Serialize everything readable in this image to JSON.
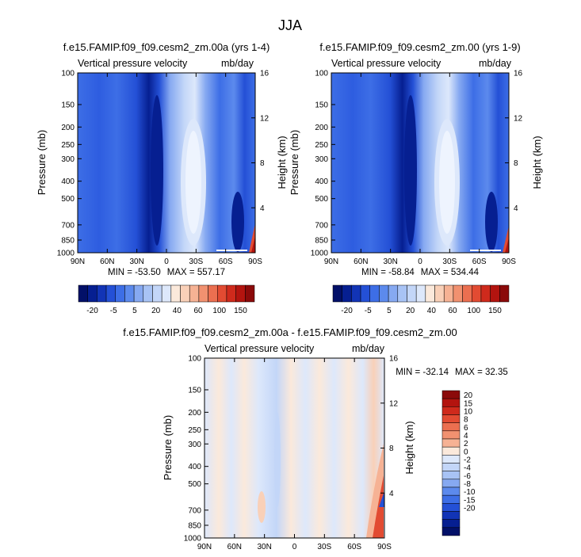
{
  "title": "JJA",
  "colors": {
    "positive_scale": [
      "#fbe9db",
      "#f9d0b8",
      "#f6b294",
      "#f19170",
      "#eb6f50",
      "#e24b32",
      "#cf2a1c",
      "#b3140f",
      "#8b0a0a"
    ],
    "negative_scale": [
      "#dde8fb",
      "#c3d6f8",
      "#a8c3f5",
      "#86a9f1",
      "#5c8aed",
      "#3d6ee6",
      "#2450d6",
      "#1234b6",
      "#061f91",
      "#021068"
    ],
    "axis": "#000000"
  },
  "chart_data": [
    {
      "id": "panel_a",
      "type": "heatmap",
      "title": "f.e15.FAMIP.f09_f09.cesm2_zm.00a (yrs 1-4)",
      "subtitle_left": "Vertical pressure velocity",
      "subtitle_right": "mb/day",
      "ylabel": "Pressure (mb)",
      "ylabel_right": "Height (km)",
      "x_ticks": [
        "90N",
        "60N",
        "30N",
        "0",
        "30S",
        "60S",
        "90S"
      ],
      "x_tick_values": [
        90,
        60,
        30,
        0,
        -30,
        -60,
        -90
      ],
      "y_ticks": [
        "100",
        "150",
        "200",
        "250",
        "300",
        "400",
        "500",
        "700",
        "850",
        "1000"
      ],
      "y_tick_values": [
        100,
        150,
        200,
        250,
        300,
        400,
        500,
        700,
        850,
        1000
      ],
      "height_ticks": [
        "16",
        "12",
        "8",
        "4"
      ],
      "height_tick_values": [
        16,
        12,
        8,
        4
      ],
      "ylim": [
        100,
        1000
      ],
      "xlim": [
        90,
        -90
      ],
      "min_label": "MIN = -53.50",
      "max_label": "MAX = 557.17",
      "colorbar_labels": [
        "-20",
        "-5",
        "5",
        "20",
        "40",
        "60",
        "100",
        "150"
      ]
    },
    {
      "id": "panel_b",
      "type": "heatmap",
      "title": "f.e15.FAMIP.f09_f09.cesm2_zm.00 (yrs 1-9)",
      "subtitle_left": "Vertical pressure velocity",
      "subtitle_right": "mb/day",
      "ylabel": "Pressure (mb)",
      "ylabel_right": "Height (km)",
      "x_ticks": [
        "90N",
        "60N",
        "30N",
        "0",
        "30S",
        "60S",
        "90S"
      ],
      "x_tick_values": [
        90,
        60,
        30,
        0,
        -30,
        -60,
        -90
      ],
      "y_ticks": [
        "100",
        "150",
        "200",
        "250",
        "300",
        "400",
        "500",
        "700",
        "850",
        "1000"
      ],
      "y_tick_values": [
        100,
        150,
        200,
        250,
        300,
        400,
        500,
        700,
        850,
        1000
      ],
      "height_ticks": [
        "16",
        "12",
        "8",
        "4"
      ],
      "height_tick_values": [
        16,
        12,
        8,
        4
      ],
      "ylim": [
        100,
        1000
      ],
      "xlim": [
        90,
        -90
      ],
      "min_label": "MIN = -58.84",
      "max_label": "MAX = 534.44",
      "colorbar_labels": [
        "-20",
        "-5",
        "5",
        "20",
        "40",
        "60",
        "100",
        "150"
      ]
    },
    {
      "id": "panel_diff",
      "type": "heatmap",
      "title": "f.e15.FAMIP.f09_f09.cesm2_zm.00a - f.e15.FAMIP.f09_f09.cesm2_zm.00",
      "subtitle_left": "Vertical pressure velocity",
      "subtitle_right": "mb/day",
      "ylabel": "Pressure (mb)",
      "ylabel_right": "Height (km)",
      "x_ticks": [
        "90N",
        "60N",
        "30N",
        "0",
        "30S",
        "60S",
        "90S"
      ],
      "x_tick_values": [
        90,
        60,
        30,
        0,
        -30,
        -60,
        -90
      ],
      "y_ticks": [
        "100",
        "150",
        "200",
        "250",
        "300",
        "400",
        "500",
        "700",
        "850",
        "1000"
      ],
      "y_tick_values": [
        100,
        150,
        200,
        250,
        300,
        400,
        500,
        700,
        850,
        1000
      ],
      "height_ticks": [
        "16",
        "12",
        "8",
        "4"
      ],
      "height_tick_values": [
        16,
        12,
        8,
        4
      ],
      "ylim": [
        100,
        1000
      ],
      "xlim": [
        90,
        -90
      ],
      "min_label": "MIN = -32.14",
      "max_label": "MAX = 32.35",
      "colorbar_labels": [
        "20",
        "15",
        "10",
        "8",
        "6",
        "4",
        "2",
        "0",
        "-2",
        "-4",
        "-6",
        "-8",
        "-10",
        "-15",
        "-20"
      ]
    }
  ]
}
